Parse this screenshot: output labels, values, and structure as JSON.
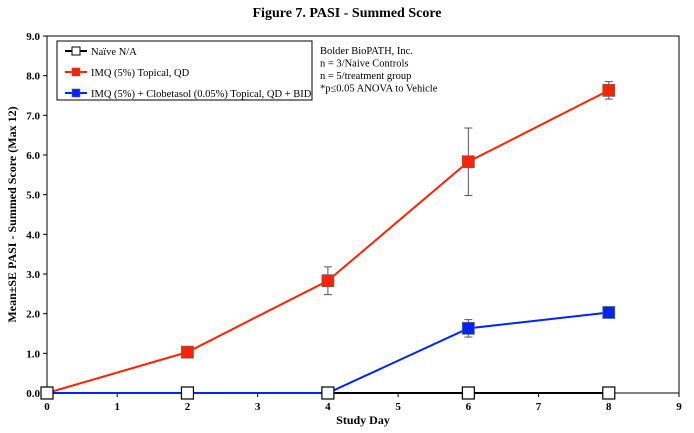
{
  "chart_data": {
    "type": "line",
    "title": "Figure 7. PASI - Summed Score",
    "xlabel": "Study Day",
    "ylabel": "Mean±SE PASI - Summed Score (Max 12)",
    "xlim": [
      0,
      9
    ],
    "ylim": [
      0,
      9
    ],
    "x_ticks": [
      "0",
      "1",
      "2",
      "3",
      "4",
      "5",
      "6",
      "7",
      "8",
      "9"
    ],
    "y_ticks": [
      "0.0",
      "1.0",
      "2.0",
      "3.0",
      "4.0",
      "5.0",
      "6.0",
      "7.0",
      "8.0",
      "9.0"
    ],
    "grid": false,
    "legend_position": "top-left",
    "series": [
      {
        "name": "Naïve N/A",
        "color": "#000000",
        "marker": "open-square",
        "points": [
          [
            0,
            0
          ],
          [
            2,
            0
          ],
          [
            4,
            0
          ],
          [
            6,
            0
          ],
          [
            8,
            0
          ]
        ],
        "error": [
          0,
          0,
          0,
          0,
          0
        ]
      },
      {
        "name": "IMQ (5%) Topical, QD",
        "color": "#ff2200",
        "marker": "filled-square",
        "points": [
          [
            0,
            0
          ],
          [
            2,
            1.03
          ],
          [
            4,
            2.83
          ],
          [
            6,
            5.83
          ],
          [
            8,
            7.63
          ]
        ],
        "error": [
          0,
          0,
          0.35,
          0.85,
          0.22
        ]
      },
      {
        "name": "IMQ (5%) + Clobetasol (0.05%) Topical, QD + BID",
        "color": "#0022ff",
        "marker": "filled-square",
        "points": [
          [
            0,
            0
          ],
          [
            2,
            0
          ],
          [
            4,
            0
          ],
          [
            6,
            1.63
          ],
          [
            8,
            2.03
          ]
        ],
        "error": [
          0,
          0,
          0,
          0.22,
          0
        ]
      }
    ],
    "annotations": [
      "Bolder BioPATH, Inc.",
      "n = 3/Naive Controls",
      "n = 5/treatment group",
      "*p≤0.05 ANOVA to Vehicle"
    ]
  }
}
